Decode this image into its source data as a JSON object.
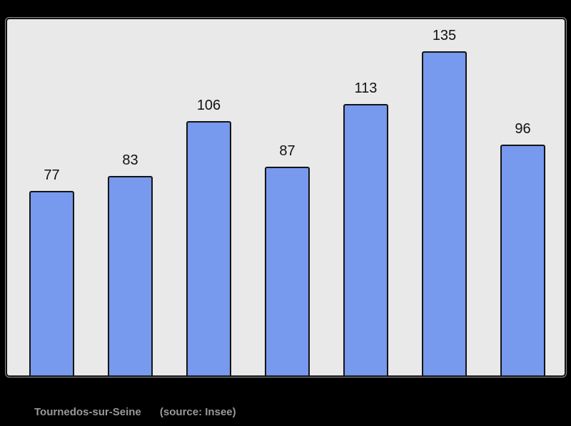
{
  "chart_data": {
    "type": "bar",
    "values": [
      77,
      83,
      106,
      87,
      113,
      135,
      96
    ],
    "data_labels": [
      "77",
      "83",
      "106",
      "87",
      "113",
      "135",
      "96"
    ],
    "title": "",
    "xlabel": "",
    "ylabel": "",
    "ylim": [
      0,
      148
    ],
    "grid": false,
    "legend": "none",
    "x_tick_labels": [],
    "data_labels_position": "above-bars"
  },
  "caption": {
    "commune": "Tournedos-sur-Seine",
    "source": "(source: Insee)"
  },
  "colors": {
    "page_bg": "#000000",
    "panel_bg": "#e9e9e9",
    "panel_border": "#141414",
    "bar_fill": "#7799ee",
    "bar_border": "#141414",
    "value_label": "#111111",
    "caption_text": "#999999"
  }
}
